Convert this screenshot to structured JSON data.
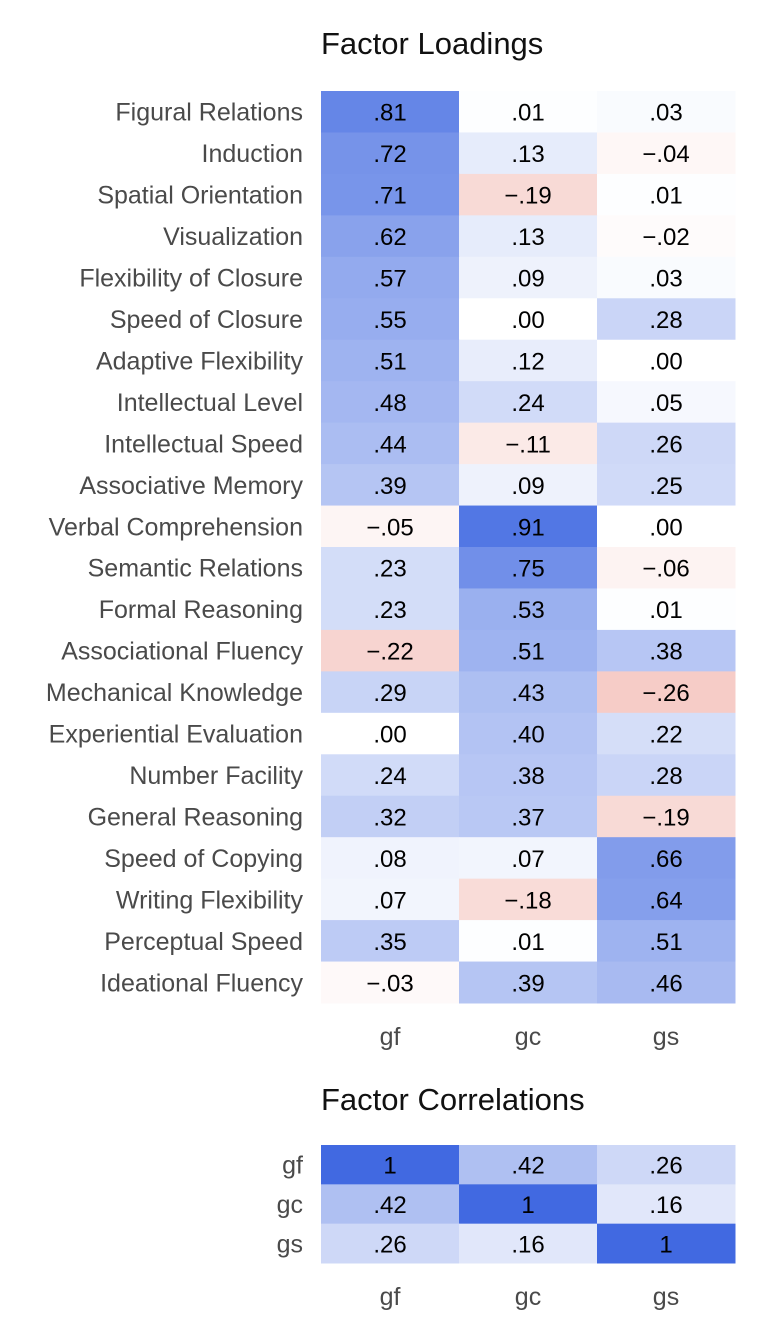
{
  "colors": {
    "positive": "#4169e1",
    "negative": "#dc3c28",
    "background": "#ffffff"
  },
  "chart_data": [
    {
      "type": "heatmap",
      "title": "Factor Loadings",
      "rows": [
        "Figural Relations",
        "Induction",
        "Spatial Orientation",
        "Visualization",
        "Flexibility of Closure",
        "Speed of Closure",
        "Adaptive Flexibility",
        "Intellectual Level",
        "Intellectual Speed",
        "Associative Memory",
        "Verbal Comprehension",
        "Semantic Relations",
        "Formal Reasoning",
        "Associational Fluency",
        "Mechanical Knowledge",
        "Experiential Evaluation",
        "Number Facility",
        "General Reasoning",
        "Speed of Copying",
        "Writing Flexibility",
        "Perceptual Speed",
        "Ideational Fluency"
      ],
      "columns": [
        "gf",
        "gc",
        "gs"
      ],
      "values": [
        [
          0.81,
          0.01,
          0.03
        ],
        [
          0.72,
          0.13,
          -0.04
        ],
        [
          0.71,
          -0.19,
          0.01
        ],
        [
          0.62,
          0.13,
          -0.02
        ],
        [
          0.57,
          0.09,
          0.03
        ],
        [
          0.55,
          0.0,
          0.28
        ],
        [
          0.51,
          0.12,
          0.0
        ],
        [
          0.48,
          0.24,
          0.05
        ],
        [
          0.44,
          -0.11,
          0.26
        ],
        [
          0.39,
          0.09,
          0.25
        ],
        [
          -0.05,
          0.91,
          0.0
        ],
        [
          0.23,
          0.75,
          -0.06
        ],
        [
          0.23,
          0.53,
          0.01
        ],
        [
          -0.22,
          0.51,
          0.38
        ],
        [
          0.29,
          0.43,
          -0.26
        ],
        [
          0.0,
          0.4,
          0.22
        ],
        [
          0.24,
          0.38,
          0.28
        ],
        [
          0.32,
          0.37,
          -0.19
        ],
        [
          0.08,
          0.07,
          0.66
        ],
        [
          0.07,
          -0.18,
          0.64
        ],
        [
          0.35,
          0.01,
          0.51
        ],
        [
          -0.03,
          0.39,
          0.46
        ]
      ],
      "labels": [
        [
          ".81",
          ".01",
          ".03"
        ],
        [
          ".72",
          ".13",
          "−.04"
        ],
        [
          ".71",
          "−.19",
          ".01"
        ],
        [
          ".62",
          ".13",
          "−.02"
        ],
        [
          ".57",
          ".09",
          ".03"
        ],
        [
          ".55",
          ".00",
          ".28"
        ],
        [
          ".51",
          ".12",
          ".00"
        ],
        [
          ".48",
          ".24",
          ".05"
        ],
        [
          ".44",
          "−.11",
          ".26"
        ],
        [
          ".39",
          ".09",
          ".25"
        ],
        [
          "−.05",
          ".91",
          ".00"
        ],
        [
          ".23",
          ".75",
          "−.06"
        ],
        [
          ".23",
          ".53",
          ".01"
        ],
        [
          "−.22",
          ".51",
          ".38"
        ],
        [
          ".29",
          ".43",
          "−.26"
        ],
        [
          ".00",
          ".40",
          ".22"
        ],
        [
          ".24",
          ".38",
          ".28"
        ],
        [
          ".32",
          ".37",
          "−.19"
        ],
        [
          ".08",
          ".07",
          ".66"
        ],
        [
          ".07",
          "−.18",
          ".64"
        ],
        [
          ".35",
          ".01",
          ".51"
        ],
        [
          "−.03",
          ".39",
          ".46"
        ]
      ],
      "value_range": [
        -1,
        1
      ]
    },
    {
      "type": "heatmap",
      "title": "Factor Correlations",
      "rows": [
        "gf",
        "gc",
        "gs"
      ],
      "columns": [
        "gf",
        "gc",
        "gs"
      ],
      "values": [
        [
          1,
          0.42,
          0.26
        ],
        [
          0.42,
          1,
          0.16
        ],
        [
          0.26,
          0.16,
          1
        ]
      ],
      "labels": [
        [
          "1",
          ".42",
          ".26"
        ],
        [
          ".42",
          "1",
          ".16"
        ],
        [
          ".26",
          ".16",
          "1"
        ]
      ],
      "value_range": [
        -1,
        1
      ]
    }
  ]
}
